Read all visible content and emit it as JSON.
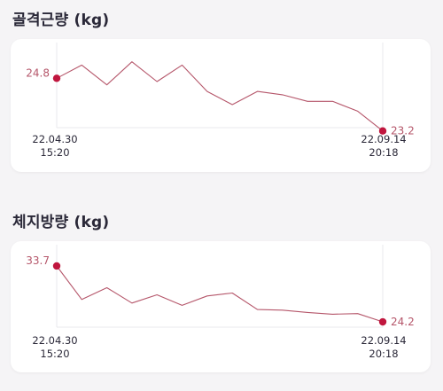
{
  "colors": {
    "line": "#b5566a",
    "accent": "#c0163e",
    "axis": "#e8e8ec",
    "text": "#2a2838"
  },
  "charts": [
    {
      "title": "골격근량 (kg)",
      "start_value_label": "24.8",
      "end_value_label": "23.2",
      "start_date": "22.04.30",
      "start_time": "15:20",
      "end_date": "22.09.14",
      "end_time": "20:18"
    },
    {
      "title": "체지방량 (kg)",
      "start_value_label": "33.7",
      "end_value_label": "24.2",
      "start_date": "22.04.30",
      "start_time": "15:20",
      "end_date": "22.09.14",
      "end_time": "20:18"
    }
  ],
  "chart_data": [
    {
      "type": "line",
      "title": "골격근량 (kg)",
      "x": [
        "22.04.30 15:20",
        "",
        "",
        "",
        "",
        "",
        "",
        "",
        "",
        "",
        "",
        "",
        "",
        "22.09.14 20:18"
      ],
      "series": [
        {
          "values": [
            24.8,
            25.2,
            24.6,
            25.3,
            24.7,
            25.2,
            24.4,
            24.0,
            24.4,
            24.3,
            24.1,
            24.1,
            23.8,
            23.2
          ]
        }
      ],
      "ylim": [
        23.3,
        25.4
      ],
      "grid": false
    },
    {
      "type": "line",
      "title": "체지방량 (kg)",
      "x": [
        "22.04.30 15:20",
        "",
        "",
        "",
        "",
        "",
        "",
        "",
        "",
        "",
        "",
        "",
        "",
        "22.09.14 20:18"
      ],
      "series": [
        {
          "values": [
            33.7,
            28.0,
            30.0,
            27.4,
            28.8,
            27.0,
            28.6,
            29.1,
            26.3,
            26.2,
            25.8,
            25.5,
            25.6,
            24.2
          ]
        }
      ],
      "ylim": [
        23.3,
        34.3
      ],
      "grid": false
    }
  ]
}
